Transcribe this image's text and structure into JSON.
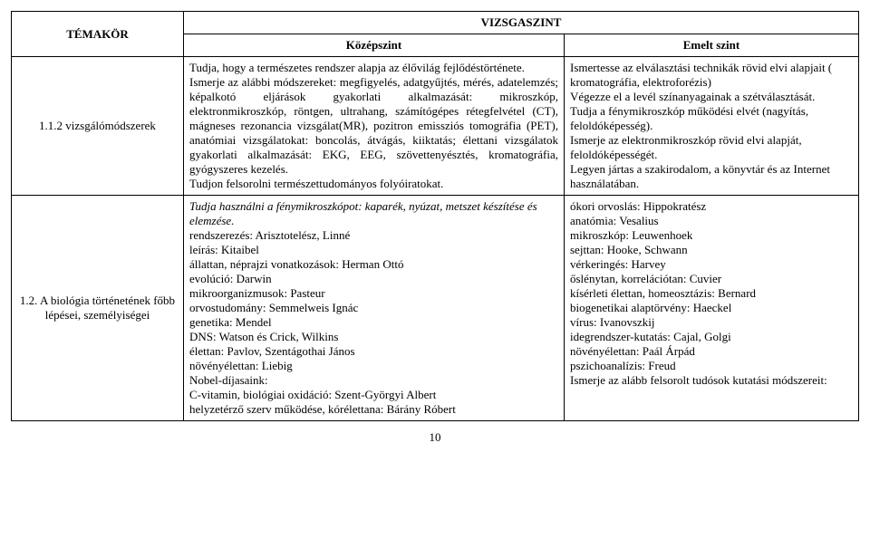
{
  "header": {
    "topic": "TÉMAKÖR",
    "level": "VIZSGASZINT",
    "mid": "Középszint",
    "right": "Emelt szint"
  },
  "row1": {
    "topic": "1.1.2 vizsgálómódszerek",
    "mid": "Tudja, hogy a természetes rendszer alapja az élővilág fejlődéstörténete.\nIsmerje az alábbi módszereket: megfigyelés, adatgyűjtés, mérés, adatelemzés; képalkotó eljárások gyakorlati alkalmazását: mikroszkóp, elektronmikroszkóp, röntgen, ultrahang, számítógépes rétegfelvétel (CT), mágneses rezonancia vizsgálat(MR), pozitron emissziós tomográfia (PET), anatómiai vizsgálatokat: boncolás, átvágás, kiiktatás; élettani vizsgálatok gyakorlati alkalmazását: EKG, EEG, szövettenyésztés, kromatográfia, gyógyszeres kezelés.\nTudjon felsorolni természettudományos folyóiratokat.",
    "right": "Ismertesse az elválasztási technikák rövid elvi alapjait ( kromatográfia, elektroforézis)\nVégezze el a levél színanyagainak a szétválasztását.\nTudja a fénymikroszkóp működési elvét (nagyítás, feloldóképesség).\nIsmerje az elektronmikroszkóp rövid elvi alapját, feloldóképességét.\n Legyen jártas a szakirodalom, a könyvtár és az Internet használatában."
  },
  "row2": {
    "topic": "1.2. A biológia történetének főbb lépései, személyiségei",
    "mid_italic": "Tudja használni a fénymikroszkópot: kaparék, nyúzat, metszet készítése és elemzése.",
    "mid_rest": "rendszerezés: Arisztotelész, Linné\nleírás: Kitaibel\nállattan, néprajzi vonatkozások: Herman Ottó\nevolúció: Darwin\nmikroorganizmusok: Pasteur\norvostudomány: Semmelweis Ignác\ngenetika: Mendel\nDNS: Watson és Crick, Wilkins\nélettan: Pavlov, Szentágothai János\nnövényélettan: Liebig\nNobel-díjasaink:\nC-vitamin, biológiai oxidáció: Szent-Györgyi Albert\nhelyzetérző szerv működése, kórélettana: Bárány Róbert",
    "right": "ókori orvoslás: Hippokratész\nanatómia: Vesalius\nmikroszkóp: Leuwenhoek\nsejttan: Hooke, Schwann\nvérkeringés: Harvey\nőslénytan, korrelációtan: Cuvier\nkísérleti élettan, homeosztázis: Bernard\nbiogenetikai alaptörvény: Haeckel\nvírus: Ivanovszkij\nidegrendszer-kutatás: Cajal, Golgi\nnövényélettan: Paál Árpád\npszichoanalízis: Freud\nIsmerje az alább felsorolt tudósok kutatási módszereit:"
  },
  "pagenum": "10"
}
